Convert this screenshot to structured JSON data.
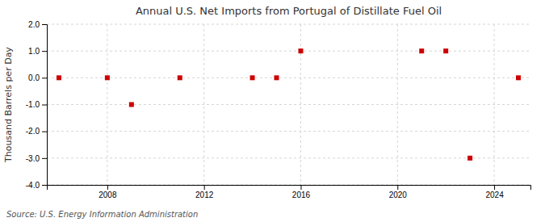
{
  "chart_data": {
    "type": "scatter",
    "title": "Annual U.S. Net Imports from Portugal of Distillate Fuel Oil",
    "ylabel": "Thousand Barrels per Day",
    "source": "Source: U.S. Energy Information Administration",
    "x": [
      2006,
      2008,
      2009,
      2011,
      2014,
      2015,
      2016,
      2021,
      2022,
      2023,
      2025
    ],
    "values": [
      0,
      0,
      -1,
      0,
      0,
      0,
      1,
      1,
      1,
      -3,
      0
    ],
    "color": "#cc0000",
    "marker": "square",
    "xlim": [
      2005.5,
      2025.5
    ],
    "ylim": [
      -4.0,
      2.0
    ],
    "xticks": [
      2008,
      2012,
      2016,
      2020,
      2024
    ],
    "yticks": [
      {
        "value": -4.0,
        "label": "-4.0"
      },
      {
        "value": -3.0,
        "label": "-3.0"
      },
      {
        "value": -2.0,
        "label": "-2.0"
      },
      {
        "value": -1.0,
        "label": "-1.0"
      },
      {
        "value": 0.0,
        "label": "0.0"
      },
      {
        "value": 1.0,
        "label": "1.0"
      },
      {
        "value": 2.0,
        "label": "2.0"
      }
    ],
    "grid": true
  }
}
